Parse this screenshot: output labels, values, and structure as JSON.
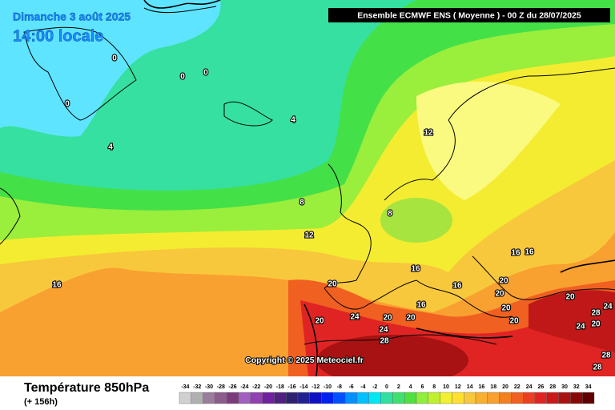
{
  "header": {
    "date": "Dimanche 3 août 2025",
    "time": "14:00 locale",
    "model": "Ensemble ECMWF ENS  ( Moyenne )  -  00 Z du 28/07/2025"
  },
  "copyright": "Copyright © 2025 Meteociel.fr",
  "footer": {
    "title": "Température 850hPa",
    "subtitle": "(+ 156h)"
  },
  "contour_labels": [
    0,
    0,
    0,
    0,
    4,
    4,
    8,
    8,
    12,
    12,
    16,
    16,
    16,
    16,
    16,
    16,
    20,
    20,
    20,
    20,
    20,
    20,
    20,
    20,
    20,
    20,
    24,
    24,
    24,
    24,
    28,
    28,
    28,
    28
  ],
  "scale": {
    "ticks": [
      -34,
      -32,
      -30,
      -28,
      -26,
      -24,
      -22,
      -20,
      -18,
      -16,
      -14,
      -12,
      -10,
      -8,
      -6,
      -4,
      -2,
      0,
      2,
      4,
      6,
      8,
      10,
      12,
      14,
      16,
      18,
      20,
      22,
      24,
      26,
      28,
      30,
      32,
      34
    ],
    "colors": [
      "#d0d0d0",
      "#b0b0b0",
      "#9c7c9c",
      "#8c5c8c",
      "#7c3c7c",
      "#a060c0",
      "#9040b0",
      "#7020a0",
      "#502080",
      "#302070",
      "#202090",
      "#1010c0",
      "#0020f0",
      "#0050ff",
      "#0090ff",
      "#00c0ff",
      "#00e8f0",
      "#30e0a0",
      "#40e070",
      "#50e040",
      "#90ee3c",
      "#c0f030",
      "#f0f030",
      "#ffe030",
      "#f8c83c",
      "#f8b030",
      "#f8a030",
      "#f08020",
      "#f06020",
      "#e84020",
      "#e02424",
      "#c81818",
      "#a81212",
      "#880808",
      "#600000"
    ]
  }
}
